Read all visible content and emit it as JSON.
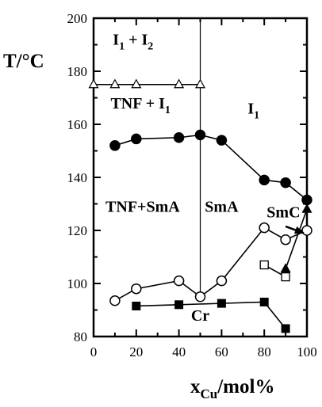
{
  "chart_data": {
    "type": "scatter",
    "title": "",
    "xlim": [
      0,
      100
    ],
    "ylim": [
      80,
      200
    ],
    "x_ticks": [
      0,
      20,
      40,
      60,
      80,
      100
    ],
    "y_ticks": [
      80,
      100,
      120,
      140,
      160,
      180,
      200
    ],
    "xlabel": {
      "main": "x",
      "sub": "Cu",
      "rest": "/mol%"
    },
    "ylabel": "T/°C",
    "grid": false,
    "series": [
      {
        "marker": "filled-circle",
        "connected": true,
        "x": [
          10,
          20,
          40,
          50,
          60,
          80,
          90,
          100
        ],
        "y": [
          152,
          154.5,
          155,
          156,
          154,
          139,
          138,
          131.5
        ]
      },
      {
        "marker": "open-circle",
        "connected": true,
        "x": [
          10,
          20,
          40,
          50,
          60,
          80,
          90,
          100
        ],
        "y": [
          93.5,
          98,
          101,
          95,
          101,
          121,
          116.5,
          120
        ]
      },
      {
        "marker": "filled-square",
        "connected": true,
        "x": [
          20,
          40,
          60,
          80,
          90
        ],
        "y": [
          91.5,
          92,
          92.5,
          93,
          83
        ]
      },
      {
        "marker": "open-triangle",
        "connected": true,
        "x": [
          0,
          10,
          20,
          40,
          50
        ],
        "y": [
          175,
          175,
          175,
          175,
          175
        ]
      },
      {
        "marker": "open-square",
        "connected": true,
        "x": [
          80,
          90
        ],
        "y": [
          107,
          102.5
        ]
      },
      {
        "marker": "filled-triangle",
        "connected": true,
        "x": [
          90,
          100
        ],
        "y": [
          105.5,
          128
        ]
      }
    ],
    "phase_boundary": {
      "x": 50,
      "y_from": 95,
      "y_to": 200
    },
    "regions": [
      {
        "label": "I",
        "sub": "1",
        "mid": " + I",
        "sub2": "2",
        "x": 18.5,
        "y": 190
      },
      {
        "label": "TNF + I",
        "sub": "1",
        "x": 22,
        "y": 166
      },
      {
        "label": "I",
        "sub": "1",
        "x": 75,
        "y": 164
      },
      {
        "label": "TNF+SmA",
        "x": 23,
        "y": 127
      },
      {
        "label": "SmA",
        "x": 60,
        "y": 127
      },
      {
        "label": "SmC",
        "x": 89,
        "y": 125
      },
      {
        "label": "Cr",
        "x": 50,
        "y": 86
      }
    ],
    "arrow": {
      "from": [
        90,
        121.5
      ],
      "to": [
        98.5,
        119
      ]
    }
  }
}
